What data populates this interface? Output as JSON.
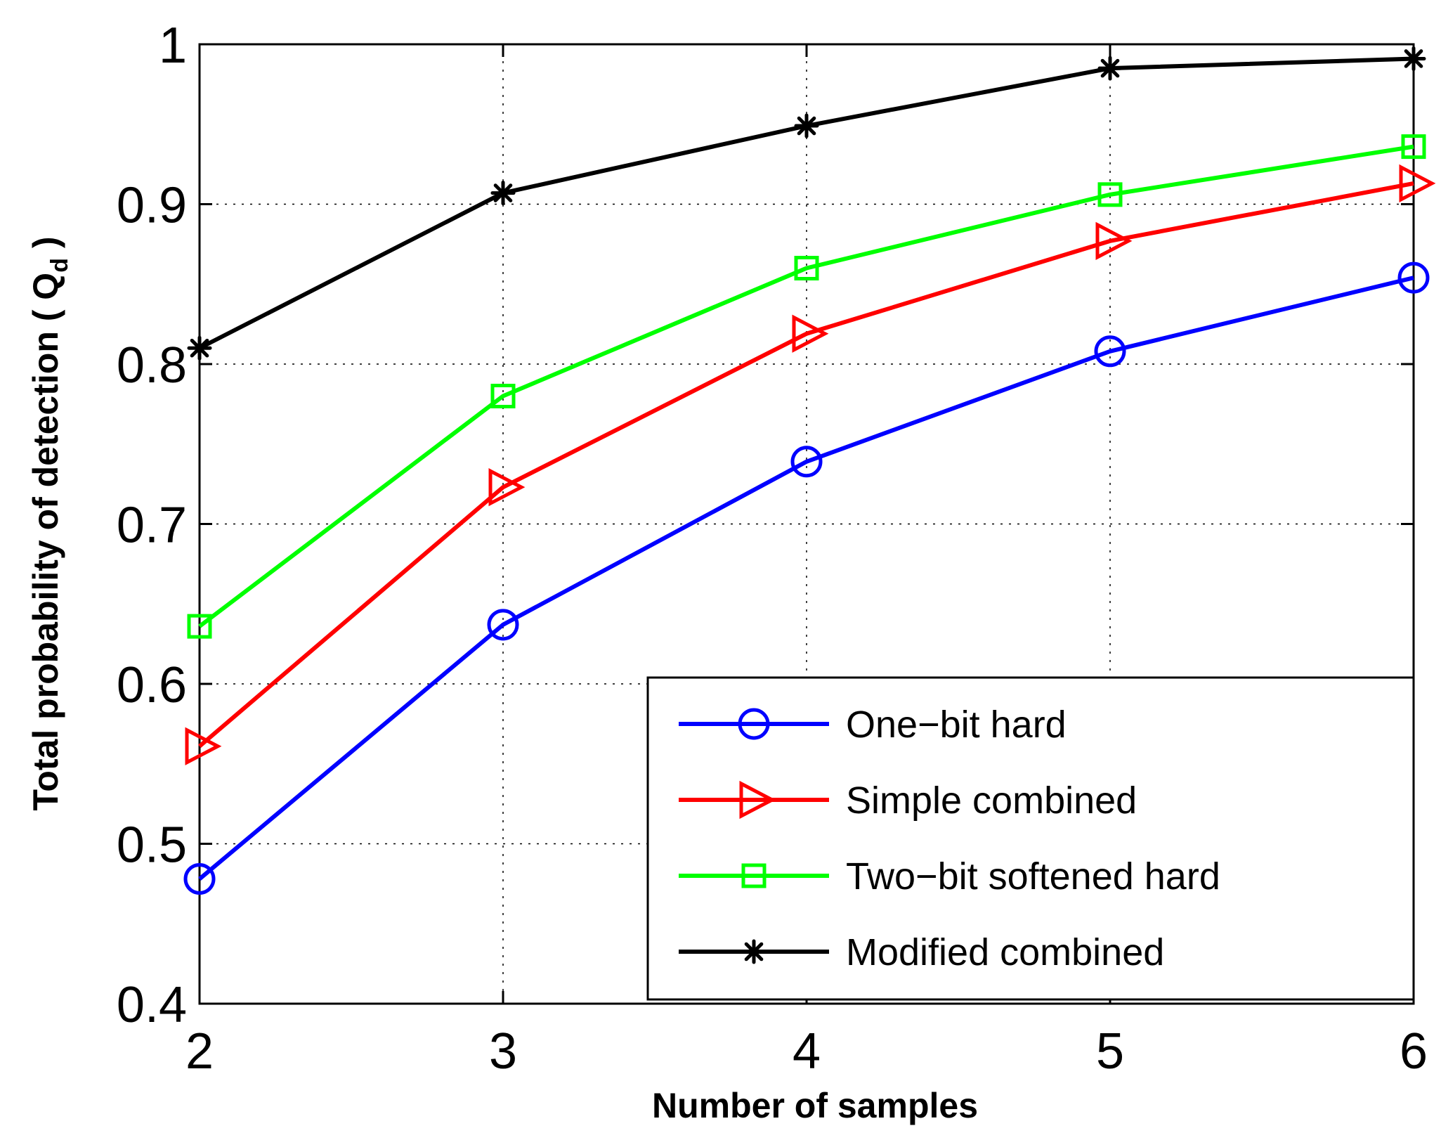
{
  "chart_data": {
    "type": "line",
    "title": "",
    "xlabel": "Number of samples",
    "ylabel": {
      "main": "Total probability of detection ( Q",
      "subscript": "d",
      "close": " )"
    },
    "x": [
      2,
      3,
      4,
      5,
      6
    ],
    "xlim": [
      2,
      6
    ],
    "ylim": [
      0.4,
      1
    ],
    "x_ticks": [
      2,
      3,
      4,
      5,
      6
    ],
    "x_tick_labels": [
      "2",
      "3",
      "4",
      "5",
      "6"
    ],
    "y_ticks": [
      0.4,
      0.5,
      0.6,
      0.7,
      0.8,
      0.9,
      1
    ],
    "y_tick_labels": [
      "0.4",
      "0.5",
      "0.6",
      "0.7",
      "0.8",
      "0.9",
      "1"
    ],
    "grid": true,
    "legend_position": "bottom-right",
    "series": [
      {
        "name": "One−bit hard",
        "color": "#0000ff",
        "marker": "circle",
        "values": [
          0.478,
          0.637,
          0.739,
          0.808,
          0.854
        ]
      },
      {
        "name": "Simple combined",
        "color": "#ff0000",
        "marker": "triangle-right",
        "values": [
          0.561,
          0.723,
          0.819,
          0.877,
          0.913
        ]
      },
      {
        "name": "Two−bit softened hard",
        "color": "#00ff00",
        "marker": "square",
        "values": [
          0.636,
          0.78,
          0.86,
          0.906,
          0.936
        ]
      },
      {
        "name": "Modified combined",
        "color": "#000000",
        "marker": "asterisk",
        "values": [
          0.81,
          0.907,
          0.949,
          0.985,
          0.991
        ]
      }
    ]
  }
}
